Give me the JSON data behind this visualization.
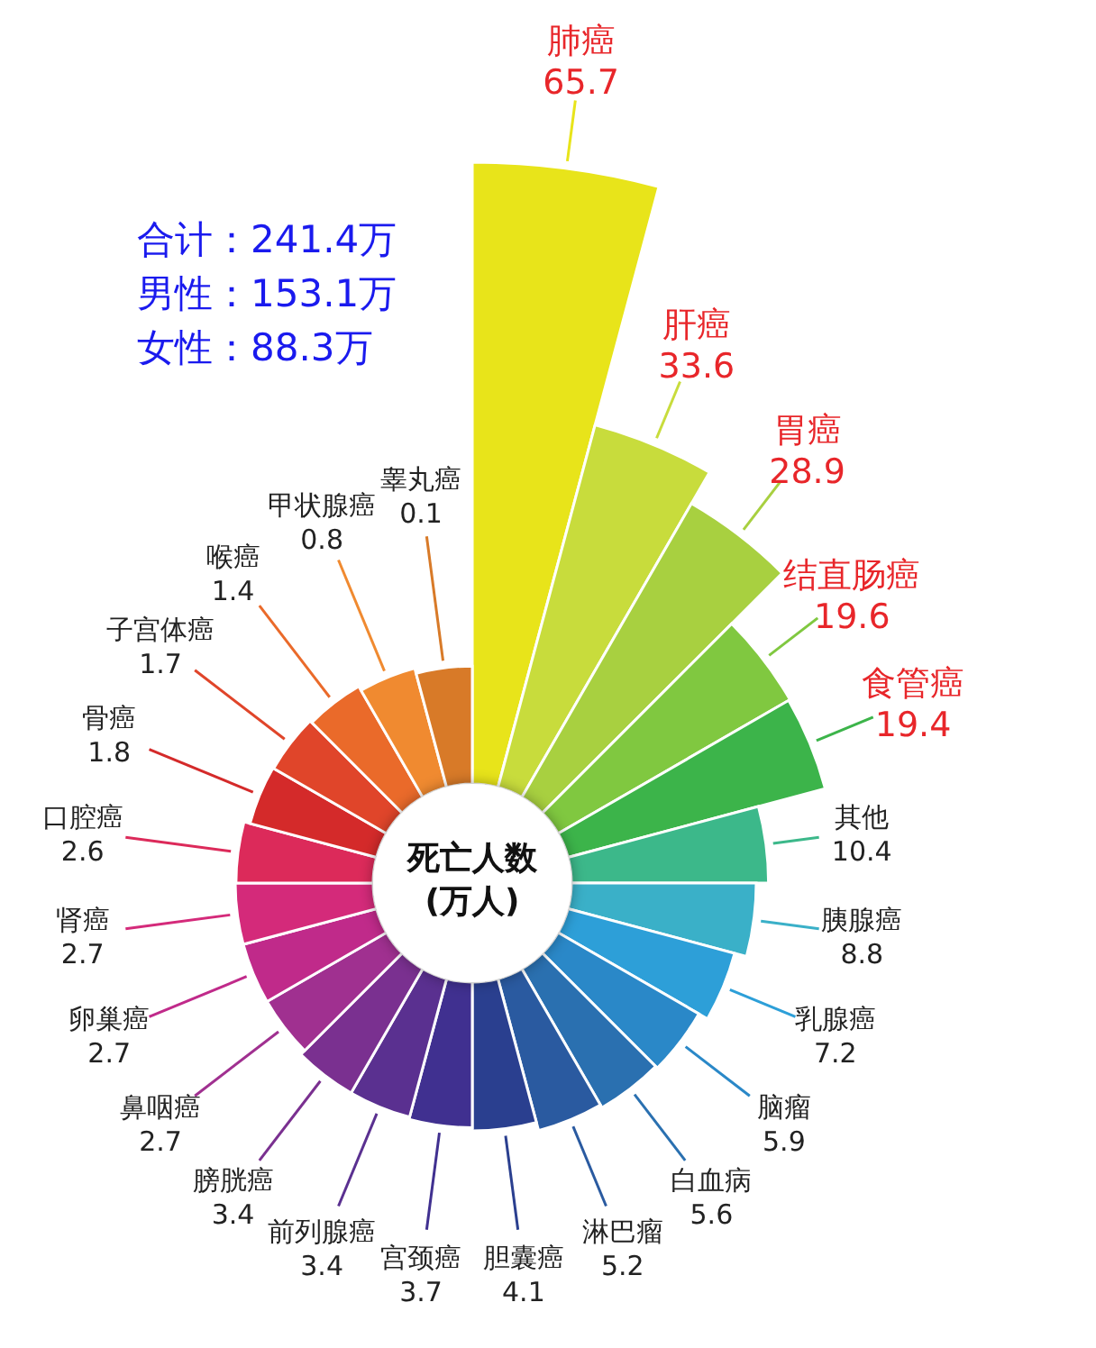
{
  "chart_data": {
    "type": "other",
    "title": "死亡人数\n(万人)",
    "categories": [
      "肺癌",
      "肝癌",
      "胃癌",
      "结直肠癌",
      "食管癌",
      "其他",
      "胰腺癌",
      "乳腺癌",
      "脑瘤",
      "白血病",
      "淋巴瘤",
      "胆囊癌",
      "宫颈癌",
      "前列腺癌",
      "膀胱癌",
      "鼻咽癌",
      "卵巢癌",
      "肾癌",
      "口腔癌",
      "骨癌",
      "子宫体癌",
      "喉癌",
      "甲状腺癌",
      "睾丸癌"
    ],
    "values": [
      65.7,
      33.6,
      28.9,
      19.6,
      19.4,
      10.4,
      8.8,
      7.2,
      5.9,
      5.6,
      5.2,
      4.1,
      3.7,
      3.4,
      3.4,
      2.7,
      2.7,
      2.7,
      2.6,
      1.8,
      1.7,
      1.4,
      0.8,
      0.1
    ],
    "colors": [
      "#e8e41a",
      "#c8dc3c",
      "#a8d040",
      "#80c840",
      "#3cb44a",
      "#3cb88a",
      "#3ab0c8",
      "#2d9fd8",
      "#2a88c8",
      "#2a70b0",
      "#2a5aa0",
      "#2a3f8f",
      "#403090",
      "#5a3090",
      "#7a3090",
      "#a03090",
      "#c02a8a",
      "#d42a7a",
      "#dc2a5a",
      "#d42a2a",
      "#e0452a",
      "#ea6a2a",
      "#f08a30",
      "#d87a28"
    ],
    "data_labels": true,
    "annotations": [
      "合计：241.4万",
      "男性：153.1万",
      "女性：88.3万"
    ]
  }
}
